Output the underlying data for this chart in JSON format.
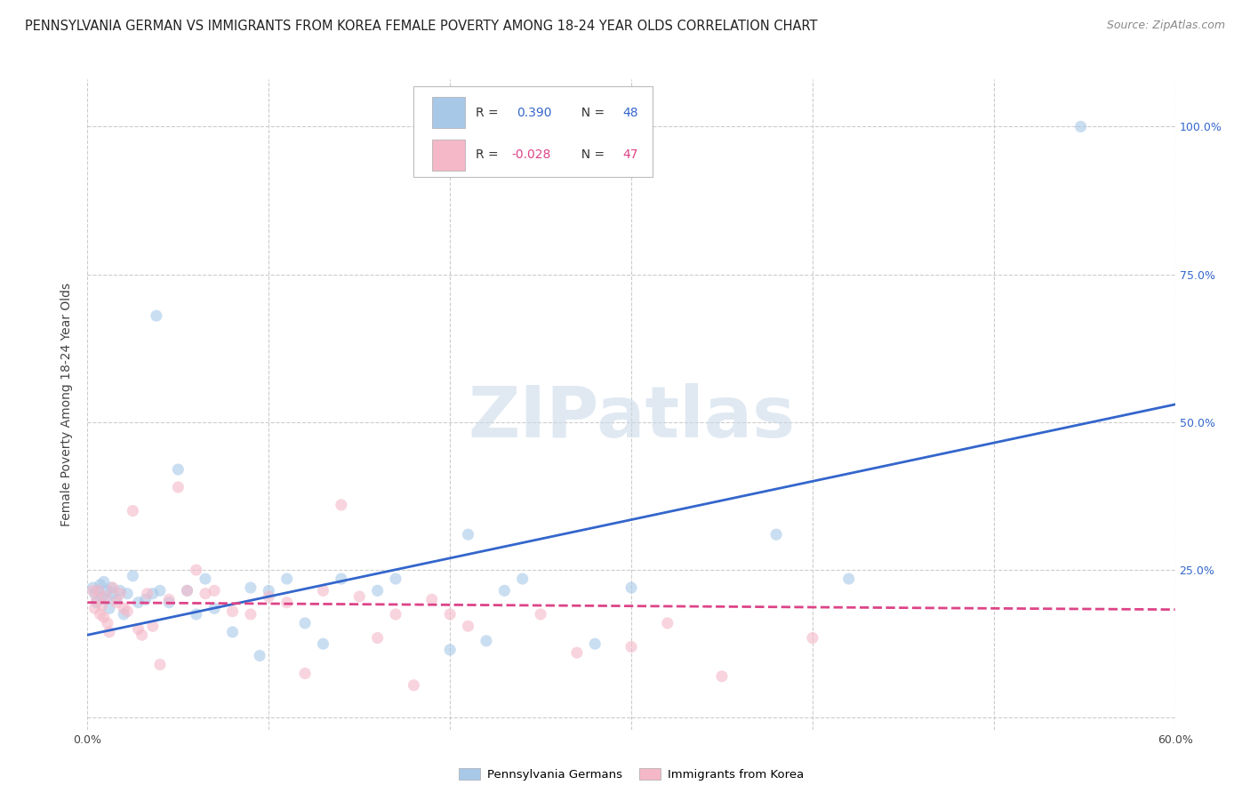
{
  "title": "PENNSYLVANIA GERMAN VS IMMIGRANTS FROM KOREA FEMALE POVERTY AMONG 18-24 YEAR OLDS CORRELATION CHART",
  "source": "Source: ZipAtlas.com",
  "ylabel": "Female Poverty Among 18-24 Year Olds",
  "xlim": [
    0.0,
    0.6
  ],
  "ylim": [
    -0.02,
    1.08
  ],
  "yticks": [
    0.0,
    0.25,
    0.5,
    0.75,
    1.0
  ],
  "xticks": [
    0.0,
    0.1,
    0.2,
    0.3,
    0.4,
    0.5,
    0.6
  ],
  "watermark": "ZIPatlas",
  "blue_color": "#a8c8e8",
  "pink_color": "#f4b8c8",
  "blue_line_color": "#3366cc",
  "pink_line_color": "#dd4488",
  "grid_color": "#cccccc",
  "background_color": "#ffffff",
  "penn_x": [
    0.003,
    0.004,
    0.005,
    0.006,
    0.007,
    0.008,
    0.009,
    0.01,
    0.011,
    0.012,
    0.013,
    0.014,
    0.016,
    0.018,
    0.02,
    0.022,
    0.025,
    0.028,
    0.032,
    0.036,
    0.04,
    0.045,
    0.05,
    0.055,
    0.06,
    0.065,
    0.07,
    0.08,
    0.09,
    0.095,
    0.1,
    0.11,
    0.12,
    0.13,
    0.14,
    0.16,
    0.17,
    0.2,
    0.21,
    0.22,
    0.23,
    0.24,
    0.28,
    0.3,
    0.38,
    0.42,
    0.548,
    0.038
  ],
  "penn_y": [
    0.22,
    0.21,
    0.195,
    0.215,
    0.225,
    0.205,
    0.23,
    0.2,
    0.215,
    0.185,
    0.22,
    0.21,
    0.2,
    0.215,
    0.175,
    0.21,
    0.24,
    0.195,
    0.2,
    0.21,
    0.215,
    0.195,
    0.42,
    0.215,
    0.175,
    0.235,
    0.185,
    0.145,
    0.22,
    0.105,
    0.215,
    0.235,
    0.16,
    0.125,
    0.235,
    0.215,
    0.235,
    0.115,
    0.31,
    0.13,
    0.215,
    0.235,
    0.125,
    0.22,
    0.31,
    0.235,
    1.0,
    0.68
  ],
  "korea_x": [
    0.003,
    0.004,
    0.005,
    0.006,
    0.007,
    0.008,
    0.009,
    0.01,
    0.011,
    0.012,
    0.014,
    0.016,
    0.018,
    0.02,
    0.022,
    0.025,
    0.028,
    0.03,
    0.033,
    0.036,
    0.04,
    0.045,
    0.05,
    0.055,
    0.06,
    0.065,
    0.07,
    0.08,
    0.09,
    0.1,
    0.11,
    0.12,
    0.13,
    0.14,
    0.15,
    0.16,
    0.17,
    0.18,
    0.19,
    0.2,
    0.21,
    0.25,
    0.27,
    0.3,
    0.35,
    0.4,
    0.32
  ],
  "korea_y": [
    0.215,
    0.185,
    0.2,
    0.215,
    0.175,
    0.19,
    0.17,
    0.205,
    0.16,
    0.145,
    0.22,
    0.195,
    0.21,
    0.185,
    0.18,
    0.35,
    0.15,
    0.14,
    0.21,
    0.155,
    0.09,
    0.2,
    0.39,
    0.215,
    0.25,
    0.21,
    0.215,
    0.18,
    0.175,
    0.205,
    0.195,
    0.075,
    0.215,
    0.36,
    0.205,
    0.135,
    0.175,
    0.055,
    0.2,
    0.175,
    0.155,
    0.175,
    0.11,
    0.12,
    0.07,
    0.135,
    0.16
  ],
  "blue_slope": 0.65,
  "blue_intercept": 0.14,
  "pink_slope": -0.02,
  "pink_intercept": 0.195,
  "dot_size": 90,
  "dot_alpha": 0.6,
  "line_width": 2.0,
  "title_fontsize": 10.5,
  "tick_fontsize": 9,
  "source_fontsize": 9,
  "axis_fontsize": 10
}
